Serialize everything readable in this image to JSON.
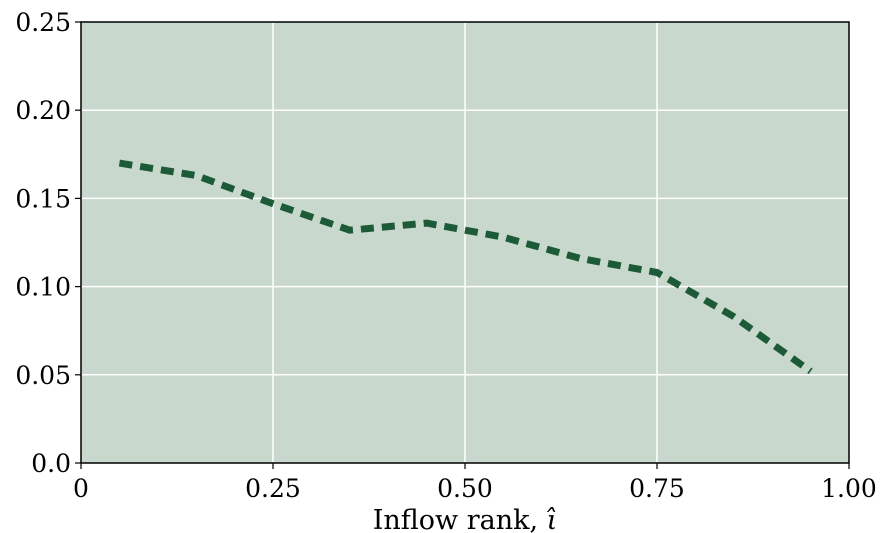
{
  "chart_data": {
    "type": "line",
    "title": "",
    "xlabel": "Inflow rank, ",
    "xlabel_symbol": "ι̂",
    "ylabel": "",
    "xlim": [
      0,
      1
    ],
    "ylim": [
      0,
      0.25
    ],
    "xticks": [
      {
        "value": 0,
        "label": "0"
      },
      {
        "value": 0.25,
        "label": "0.25"
      },
      {
        "value": 0.5,
        "label": "0.50"
      },
      {
        "value": 0.75,
        "label": "0.75"
      },
      {
        "value": 1,
        "label": "1.00"
      }
    ],
    "yticks": [
      {
        "value": 0,
        "label": "0.0"
      },
      {
        "value": 0.05,
        "label": "0.05"
      },
      {
        "value": 0.1,
        "label": "0.10"
      },
      {
        "value": 0.15,
        "label": "0.15"
      },
      {
        "value": 0.2,
        "label": "0.20"
      },
      {
        "value": 0.25,
        "label": "0.25"
      }
    ],
    "grid": true,
    "legend": "none",
    "series": [
      {
        "style": "dashed",
        "color": "#1d5a38",
        "points": [
          {
            "x": 0.05,
            "y": 0.17
          },
          {
            "x": 0.15,
            "y": 0.163
          },
          {
            "x": 0.25,
            "y": 0.147
          },
          {
            "x": 0.35,
            "y": 0.132
          },
          {
            "x": 0.45,
            "y": 0.136
          },
          {
            "x": 0.55,
            "y": 0.128
          },
          {
            "x": 0.65,
            "y": 0.116
          },
          {
            "x": 0.75,
            "y": 0.108
          },
          {
            "x": 0.85,
            "y": 0.083
          },
          {
            "x": 0.95,
            "y": 0.052
          }
        ]
      }
    ],
    "colors": {
      "plot_background": "#c9d8cc",
      "grid": "#ffffff",
      "axis": "#000000"
    }
  }
}
